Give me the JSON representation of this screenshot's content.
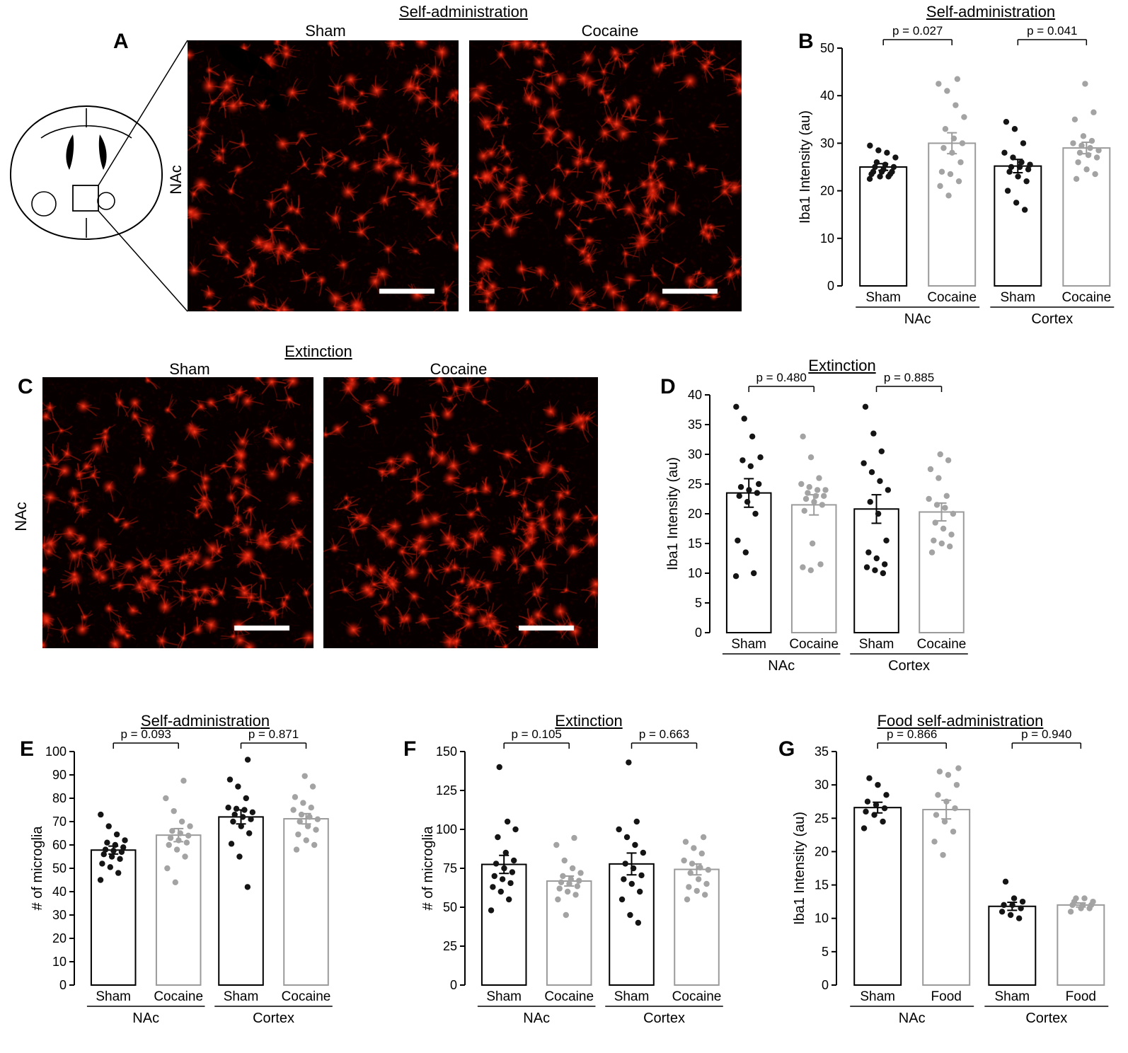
{
  "colors": {
    "sham_stroke": "#000000",
    "treatment_stroke": "#9b9b9b",
    "sham_dot": "#141414",
    "treatment_dot": "#a3a3a3",
    "micrograph_red": "#e01800",
    "background": "#ffffff"
  },
  "panel_a": {
    "letter": "A",
    "title": "Self-administration",
    "left_image_label": "Sham",
    "right_image_label": "Cocaine",
    "region_label": "NAc"
  },
  "panel_c": {
    "letter": "C",
    "title": "Extinction",
    "left_image_label": "Sham",
    "right_image_label": "Cocaine",
    "region_label": "NAc"
  },
  "chart_data": [
    {
      "id": "B",
      "letter": "B",
      "type": "bar",
      "title": "Self-administration",
      "ylabel": "Iba1 Intensity (au)",
      "ylim": [
        0,
        50
      ],
      "yticks": [
        0,
        10,
        20,
        30,
        40,
        50
      ],
      "categories": [
        "Sham",
        "Cocaine",
        "Sham",
        "Cocaine"
      ],
      "group_labels": [
        "NAc",
        "Cortex"
      ],
      "values": [
        25.0,
        30.0,
        25.2,
        29.0
      ],
      "sem": [
        0.7,
        2.2,
        1.4,
        1.2
      ],
      "p_values": [
        "p = 0.027",
        "p = 0.041"
      ],
      "points": [
        [
          22.5,
          23,
          23,
          23.5,
          23.5,
          24,
          24,
          24,
          24.5,
          25,
          25,
          25.5,
          26,
          27,
          28,
          28.5,
          29.5
        ],
        [
          19,
          21,
          22,
          23.5,
          24,
          26,
          28,
          29,
          30,
          31,
          33,
          35.5,
          38,
          41,
          42.5,
          43.5
        ],
        [
          16,
          17.5,
          20,
          22,
          23,
          24,
          24.5,
          25,
          25,
          25.5,
          26,
          27,
          28,
          30,
          33,
          34.5
        ],
        [
          22.5,
          23.5,
          24.5,
          26,
          27,
          27.5,
          28,
          28.5,
          29,
          29.5,
          30,
          30.5,
          31.5,
          35,
          36.5,
          42.5
        ]
      ]
    },
    {
      "id": "D",
      "letter": "D",
      "type": "bar",
      "title": "Extinction",
      "ylabel": "Iba1 Intensity (au)",
      "ylim": [
        0,
        40
      ],
      "yticks": [
        0,
        5,
        10,
        15,
        20,
        25,
        30,
        35,
        40
      ],
      "categories": [
        "Sham",
        "Cocaine",
        "Sham",
        "Cocaine"
      ],
      "group_labels": [
        "NAc",
        "Cortex"
      ],
      "values": [
        23.5,
        21.5,
        20.8,
        20.3
      ],
      "sem": [
        2.4,
        1.7,
        2.4,
        1.5
      ],
      "p_values": [
        "p = 0.480",
        "p = 0.885"
      ],
      "points": [
        [
          9.5,
          10,
          13.5,
          15.5,
          20,
          22,
          23,
          23.5,
          24,
          24.5,
          25,
          28,
          29,
          29.5,
          33,
          36,
          38
        ],
        [
          10.5,
          11,
          11.5,
          15,
          20.5,
          21.5,
          22,
          22.5,
          23,
          23,
          23.5,
          24,
          24,
          24.5,
          25,
          26,
          29.5,
          33
        ],
        [
          10,
          10.5,
          11,
          11.5,
          12.5,
          13.5,
          15.5,
          20,
          22,
          24,
          25.5,
          27,
          28.5,
          30.5,
          33.5,
          38
        ],
        [
          13.5,
          14.5,
          15,
          15.5,
          16.5,
          17.5,
          18.5,
          20,
          21,
          21.5,
          22.5,
          23,
          26,
          27.5,
          29,
          30
        ]
      ]
    },
    {
      "id": "E",
      "letter": "E",
      "type": "bar",
      "title": "Self-administration",
      "ylabel": "# of microglia",
      "ylim": [
        0,
        100
      ],
      "yticks": [
        0,
        10,
        20,
        30,
        40,
        50,
        60,
        70,
        80,
        90,
        100
      ],
      "categories": [
        "Sham",
        "Cocaine",
        "Sham",
        "Cocaine"
      ],
      "group_labels": [
        "NAc",
        "Cortex"
      ],
      "values": [
        57.8,
        64.2,
        72.0,
        71.2
      ],
      "sem": [
        1.7,
        2.8,
        3.0,
        2.2
      ],
      "p_values": [
        "p = 0.093",
        "p = 0.871"
      ],
      "points": [
        [
          45,
          48,
          50.5,
          52,
          54,
          55,
          56,
          57,
          57.5,
          58,
          59,
          60,
          61,
          62,
          64.5,
          68,
          73
        ],
        [
          44,
          50,
          55,
          58,
          60,
          61,
          62,
          63,
          64,
          65,
          66,
          68,
          70,
          74.5,
          80,
          87.5
        ],
        [
          42,
          55,
          60.5,
          65,
          68,
          70,
          71,
          72,
          73,
          74,
          75,
          75.5,
          76,
          80,
          85,
          88,
          96.5
        ],
        [
          58,
          60,
          62,
          64.5,
          66.5,
          68,
          70,
          71,
          72,
          73,
          75,
          76,
          78,
          80.5,
          85,
          89.5
        ]
      ]
    },
    {
      "id": "F",
      "letter": "F",
      "type": "bar",
      "title": "Extinction",
      "ylabel": "# of microglia",
      "ylim": [
        0,
        150
      ],
      "yticks": [
        0,
        25,
        50,
        75,
        100,
        125,
        150
      ],
      "categories": [
        "Sham",
        "Cocaine",
        "Sham",
        "Cocaine"
      ],
      "group_labels": [
        "NAc",
        "Cortex"
      ],
      "values": [
        77.5,
        66.8,
        77.8,
        74.3
      ],
      "sem": [
        5.8,
        3.2,
        7.0,
        3.5
      ],
      "p_values": [
        "p = 0.105",
        "p = 0.663"
      ],
      "points": [
        [
          48,
          55,
          60,
          63,
          65.5,
          68,
          70,
          72.5,
          75,
          78,
          80,
          85,
          95,
          100,
          105,
          140
        ],
        [
          45,
          55,
          58,
          60,
          62,
          63.5,
          65,
          66,
          67,
          68,
          70,
          72,
          75,
          80,
          90,
          94.5
        ],
        [
          40,
          45,
          55,
          60,
          65,
          68,
          70.5,
          75,
          78,
          85,
          90,
          95,
          100,
          105,
          143
        ],
        [
          55,
          58,
          60.5,
          63,
          65,
          68,
          72,
          74,
          75.5,
          78,
          80,
          84.5,
          88,
          92,
          95
        ]
      ]
    },
    {
      "id": "G",
      "letter": "G",
      "type": "bar",
      "title": "Food self-administration",
      "ylabel": "Iba1 Intensity (au)",
      "ylim": [
        0,
        35
      ],
      "yticks": [
        0,
        5,
        10,
        15,
        20,
        25,
        30,
        35
      ],
      "categories": [
        "Sham",
        "Food",
        "Sham",
        "Food"
      ],
      "group_labels": [
        "NAc",
        "Cortex"
      ],
      "values": [
        26.6,
        26.3,
        11.8,
        12.0
      ],
      "sem": [
        0.8,
        1.4,
        0.6,
        0.3
      ],
      "p_values": [
        "p = 0.866",
        "p = 0.940"
      ],
      "points": [
        [
          23.5,
          24.5,
          25.5,
          26,
          26.5,
          27,
          27.5,
          28.5,
          30,
          31
        ],
        [
          19.5,
          21.5,
          23,
          24.5,
          25.5,
          26.5,
          27.5,
          28.5,
          30,
          31.5,
          32,
          32.5
        ],
        [
          10,
          10.5,
          11,
          11.5,
          12,
          12,
          12.5,
          13,
          15.5
        ],
        [
          11,
          11.5,
          11.5,
          12,
          12,
          12,
          12.5,
          12.5,
          13,
          13
        ]
      ]
    }
  ]
}
